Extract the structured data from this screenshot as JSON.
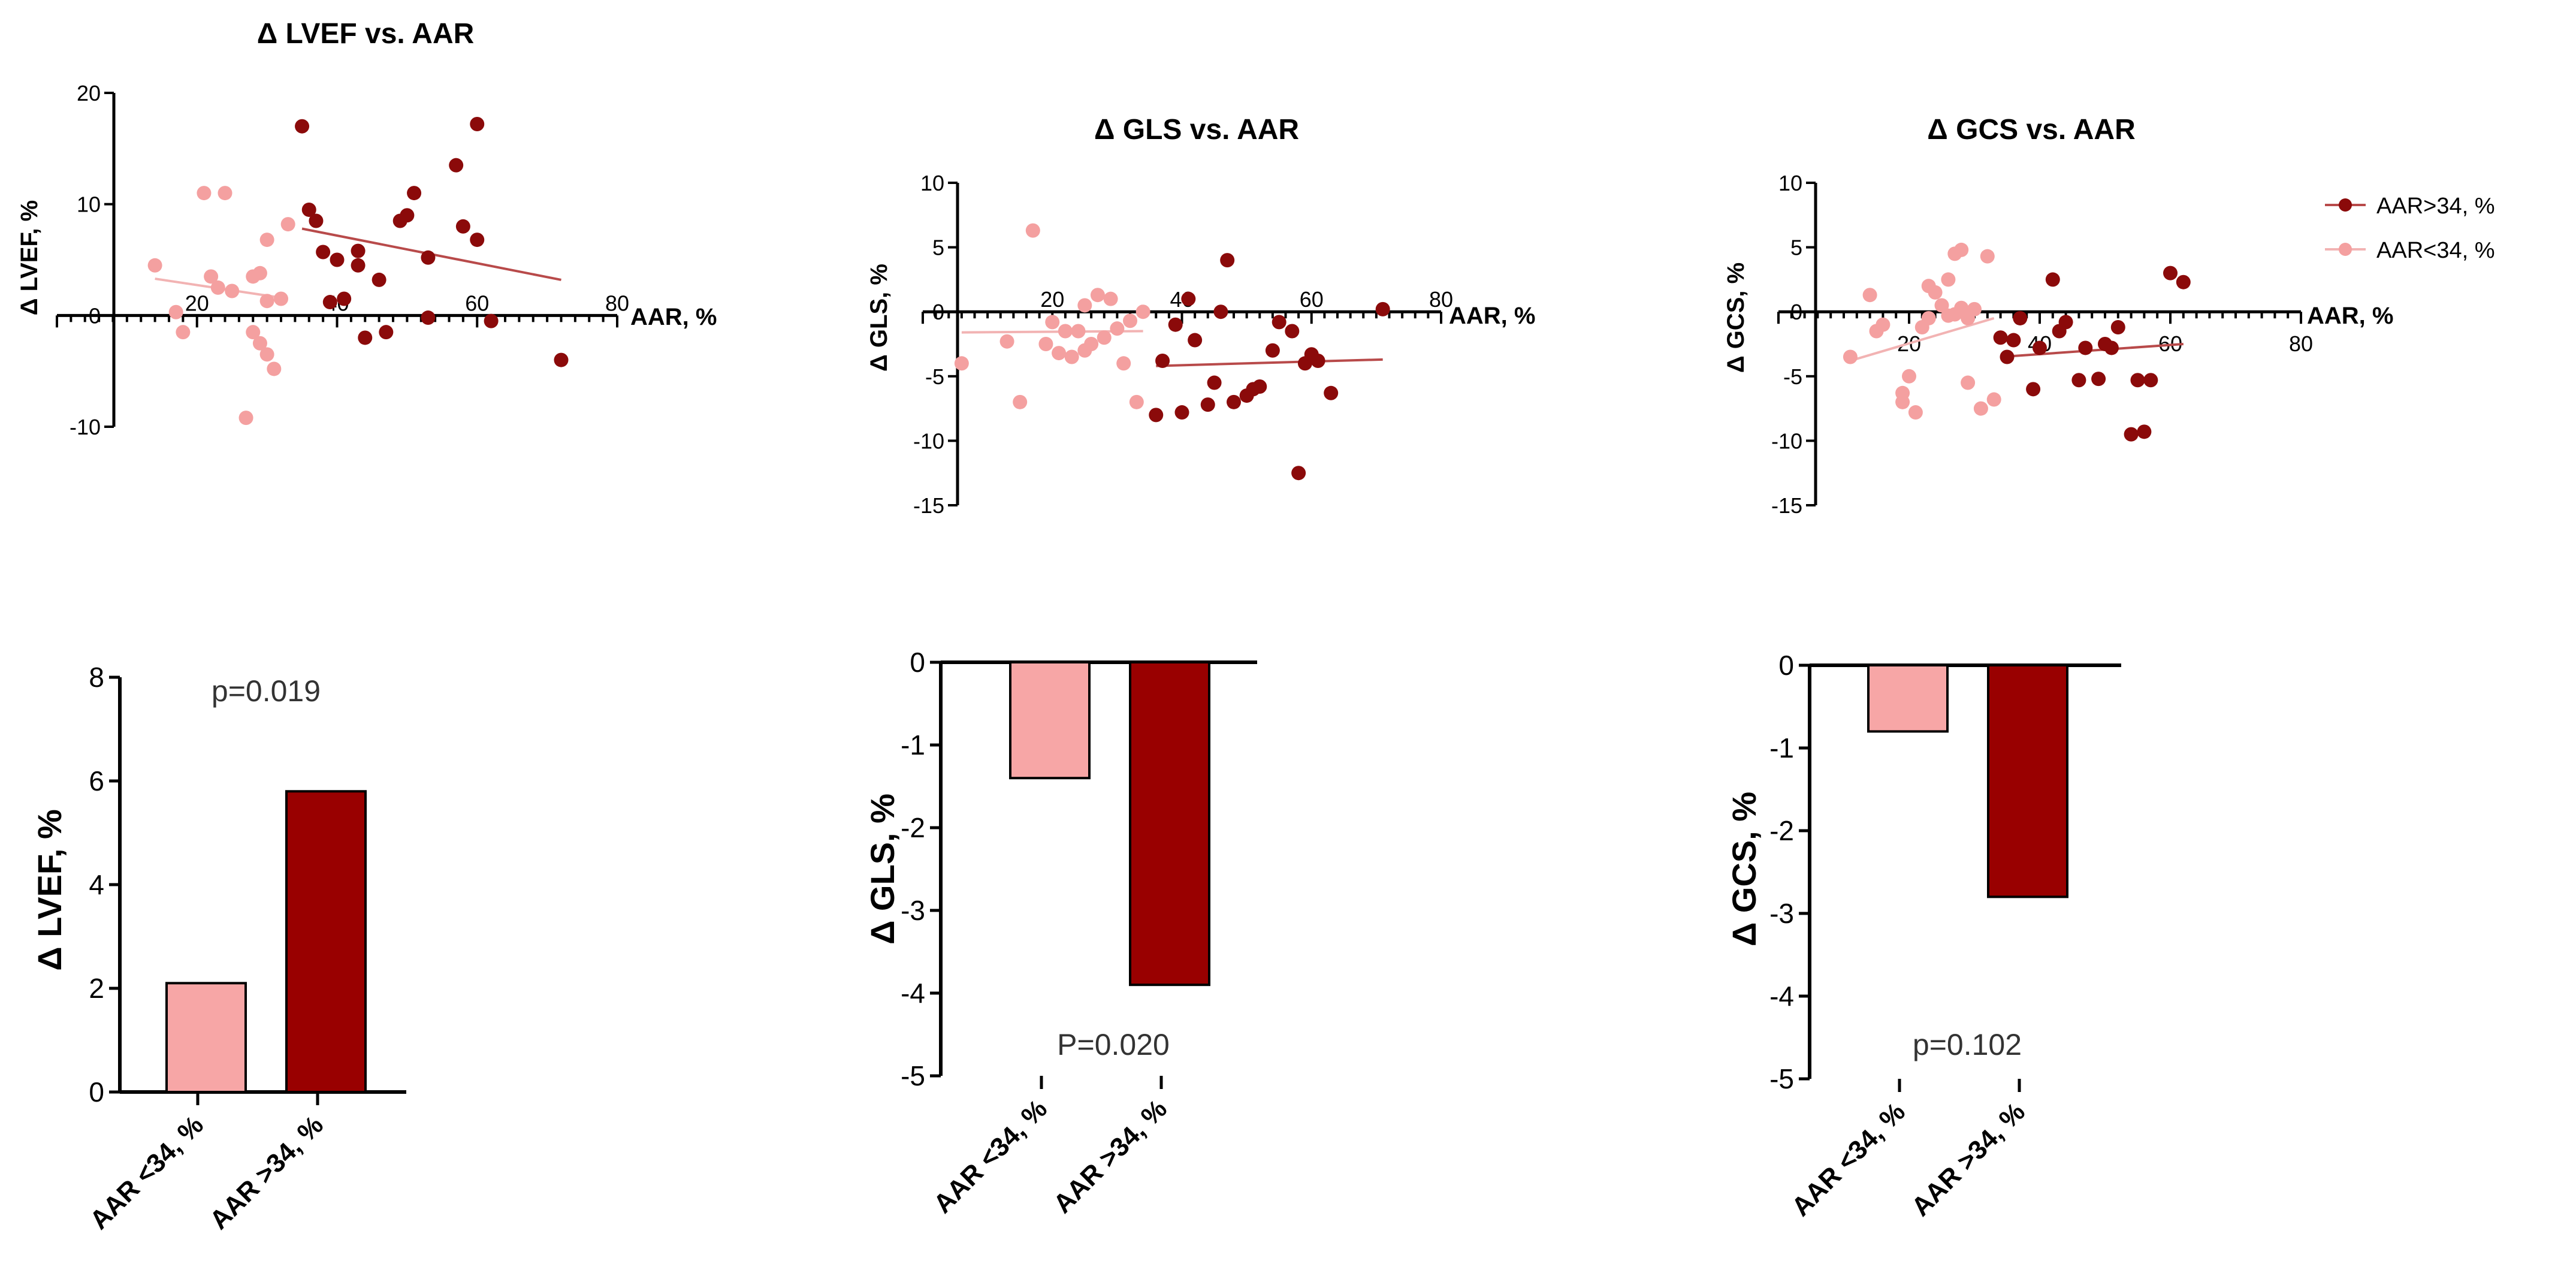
{
  "colors": {
    "high": "#8b0a0a",
    "low": "#f4a0a0",
    "bar_high": "#990000",
    "bar_low": "#f7a6a6",
    "line_high": "#b84a4a",
    "line_low": "#f2b3b3"
  },
  "legend": {
    "high": "AAR>34, %",
    "low": "AAR<34, %"
  },
  "chart_data": [
    {
      "type": "scatter",
      "title": "Δ LVEF vs. AAR",
      "xlabel": "AAR, %",
      "ylabel": "Δ LVEF, %",
      "xlim": [
        0,
        80
      ],
      "ylim": [
        -10,
        20
      ],
      "xticks": [
        20,
        40,
        60,
        80
      ],
      "yticks": [
        -10,
        0,
        10,
        20
      ],
      "series": [
        {
          "name": "AAR<34, %",
          "x": [
            14,
            17,
            18,
            21,
            22,
            23,
            24,
            25,
            27,
            28,
            28,
            29,
            29,
            30,
            30,
            30,
            31,
            32,
            33
          ],
          "y": [
            4.5,
            0.3,
            -1.5,
            11,
            3.5,
            2.5,
            11,
            2.2,
            -9.2,
            3.5,
            -1.5,
            3.8,
            -2.5,
            1.3,
            -3.5,
            6.8,
            -4.8,
            1.5,
            8.2
          ]
        },
        {
          "name": "AAR>34, %",
          "x": [
            35,
            36,
            37,
            38,
            39,
            40,
            41,
            43,
            43,
            44,
            46,
            47,
            49,
            50,
            51,
            53,
            53,
            57,
            58,
            60,
            60,
            62,
            72
          ],
          "y": [
            17,
            9.5,
            8.5,
            5.7,
            1.2,
            5,
            1.5,
            4.5,
            5.8,
            -2,
            3.2,
            -1.5,
            8.5,
            9,
            11,
            5.2,
            -0.2,
            13.5,
            8,
            17.2,
            6.8,
            -0.5,
            -4
          ]
        }
      ],
      "trend_lines": [
        {
          "name": "AAR<34, %",
          "x": [
            14,
            33
          ],
          "y": [
            3.3,
            1.5
          ]
        },
        {
          "name": "AAR>34, %",
          "x": [
            35,
            72
          ],
          "y": [
            7.8,
            3.2
          ]
        }
      ]
    },
    {
      "type": "scatter",
      "title": "Δ GLS vs. AAR",
      "xlabel": "AAR, %",
      "ylabel": "Δ GLS, %",
      "xlim": [
        0,
        80
      ],
      "ylim": [
        -15,
        10
      ],
      "xticks": [
        20,
        40,
        60,
        80
      ],
      "yticks": [
        -15,
        -10,
        -5,
        0,
        5,
        10
      ],
      "series": [
        {
          "name": "AAR<34, %",
          "x": [
            6,
            13,
            15,
            17,
            19,
            20,
            21,
            22,
            23,
            24,
            25,
            25,
            26,
            27,
            28,
            29,
            30,
            31,
            32,
            33,
            34
          ],
          "y": [
            -4,
            -2.3,
            -7,
            6.3,
            -2.5,
            -0.8,
            -3.2,
            -1.5,
            -3.5,
            -1.5,
            0.5,
            -3,
            -2.5,
            1.3,
            -2,
            1,
            -1.3,
            -4,
            -0.7,
            -7,
            0
          ]
        },
        {
          "name": "AAR>34, %",
          "x": [
            36,
            37,
            39,
            40,
            41,
            42,
            44,
            45,
            46,
            47,
            48,
            50,
            51,
            52,
            54,
            55,
            57,
            58,
            59,
            60,
            61,
            63,
            71
          ],
          "y": [
            -8,
            -3.8,
            -1,
            -7.8,
            1,
            -2.2,
            -7.2,
            -5.5,
            0,
            4,
            -7,
            -6.5,
            -6,
            -5.8,
            -3,
            -0.8,
            -1.5,
            -12.5,
            -4,
            -3.3,
            -3.8,
            -6.3,
            0.2
          ]
        }
      ],
      "trend_lines": [
        {
          "name": "AAR<34, %",
          "x": [
            6,
            34
          ],
          "y": [
            -1.6,
            -1.5
          ]
        },
        {
          "name": "AAR>34, %",
          "x": [
            36,
            71
          ],
          "y": [
            -4.2,
            -3.7
          ]
        }
      ]
    },
    {
      "type": "scatter",
      "title": "Δ GCS vs. AAR",
      "xlabel": "AAR, %",
      "ylabel": "Δ GCS, %",
      "xlim": [
        0,
        80
      ],
      "ylim": [
        -15,
        10
      ],
      "xticks": [
        20,
        40,
        60,
        80
      ],
      "yticks": [
        -15,
        -10,
        -5,
        0,
        5,
        10
      ],
      "series": [
        {
          "name": "AAR<34, %",
          "x": [
            11,
            14,
            15,
            16,
            19,
            19,
            20,
            21,
            22,
            23,
            23,
            24,
            25,
            26,
            26,
            27,
            27,
            28,
            28,
            29,
            29,
            30,
            31,
            32,
            33
          ],
          "y": [
            -3.5,
            1.3,
            -1.5,
            -1,
            -7,
            -6.3,
            -5,
            -7.8,
            -1.2,
            2,
            -0.5,
            1.5,
            0.5,
            2.5,
            -0.3,
            4.5,
            -0.2,
            4.8,
            0.3,
            -5.5,
            -0.5,
            0.2,
            -7.5,
            4.3,
            -6.8
          ]
        },
        {
          "name": "AAR>34, %",
          "x": [
            34,
            35,
            36,
            37,
            39,
            40,
            42,
            43,
            44,
            46,
            47,
            49,
            50,
            51,
            52,
            54,
            55,
            56,
            57,
            60,
            62
          ],
          "y": [
            -2,
            -3.5,
            -2.2,
            -0.5,
            -6,
            -2.8,
            2.5,
            -1.5,
            -0.8,
            -5.3,
            -2.8,
            -5.2,
            -2.5,
            -2.8,
            -1.2,
            -9.5,
            -5.3,
            -9.3,
            -5.3,
            3,
            2.3
          ]
        }
      ],
      "trend_lines": [
        {
          "name": "AAR<34, %",
          "x": [
            11,
            33
          ],
          "y": [
            -3.8,
            -0.5
          ]
        },
        {
          "name": "AAR>34, %",
          "x": [
            34,
            62
          ],
          "y": [
            -3.5,
            -2.5
          ]
        }
      ]
    },
    {
      "type": "bar",
      "categories": [
        "AAR <34, %",
        "AAR >34, %"
      ],
      "values": [
        2.1,
        5.8
      ],
      "ylabel": "Δ LVEF, %",
      "ylim": [
        0,
        8
      ],
      "yticks": [
        0,
        2,
        4,
        6,
        8
      ],
      "annotation": "p=0.019"
    },
    {
      "type": "bar",
      "categories": [
        "AAR <34, %",
        "AAR >34, %"
      ],
      "values": [
        -1.4,
        -3.9
      ],
      "ylabel": "Δ GLS, %",
      "ylim": [
        -5,
        0
      ],
      "yticks": [
        -5,
        -4,
        -3,
        -2,
        -1,
        0
      ],
      "annotation": "P=0.020"
    },
    {
      "type": "bar",
      "categories": [
        "AAR <34, %",
        "AAR >34, %"
      ],
      "values": [
        -0.8,
        -2.8
      ],
      "ylabel": "Δ GCS, %",
      "ylim": [
        -5,
        0
      ],
      "yticks": [
        -5,
        -4,
        -3,
        -2,
        -1,
        0
      ],
      "annotation": "p=0.102"
    }
  ]
}
